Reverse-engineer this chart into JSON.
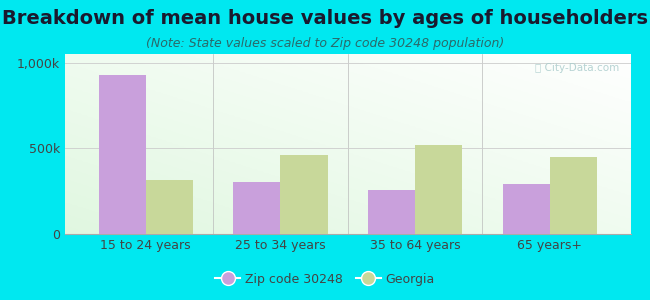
{
  "title": "Breakdown of mean house values by ages of householders",
  "subtitle": "(Note: State values scaled to Zip code 30248 population)",
  "categories": [
    "15 to 24 years",
    "25 to 34 years",
    "35 to 64 years",
    "65 years+"
  ],
  "zip_values": [
    930000,
    305000,
    255000,
    290000
  ],
  "georgia_values": [
    315000,
    460000,
    520000,
    450000
  ],
  "zip_color": "#c9a0dc",
  "georgia_color": "#c8d89a",
  "background_outer": "#00e8f0",
  "ylim": [
    0,
    1050000
  ],
  "yticks": [
    0,
    500000,
    1000000
  ],
  "ytick_labels": [
    "0",
    "500k",
    "1,000k"
  ],
  "legend_zip_label": "Zip code 30248",
  "legend_georgia_label": "Georgia",
  "bar_width": 0.35,
  "title_fontsize": 14,
  "subtitle_fontsize": 9,
  "tick_fontsize": 9,
  "legend_fontsize": 9,
  "title_color": "#1a1a2e",
  "subtitle_color": "#2a6a6a",
  "tick_color": "#444444"
}
